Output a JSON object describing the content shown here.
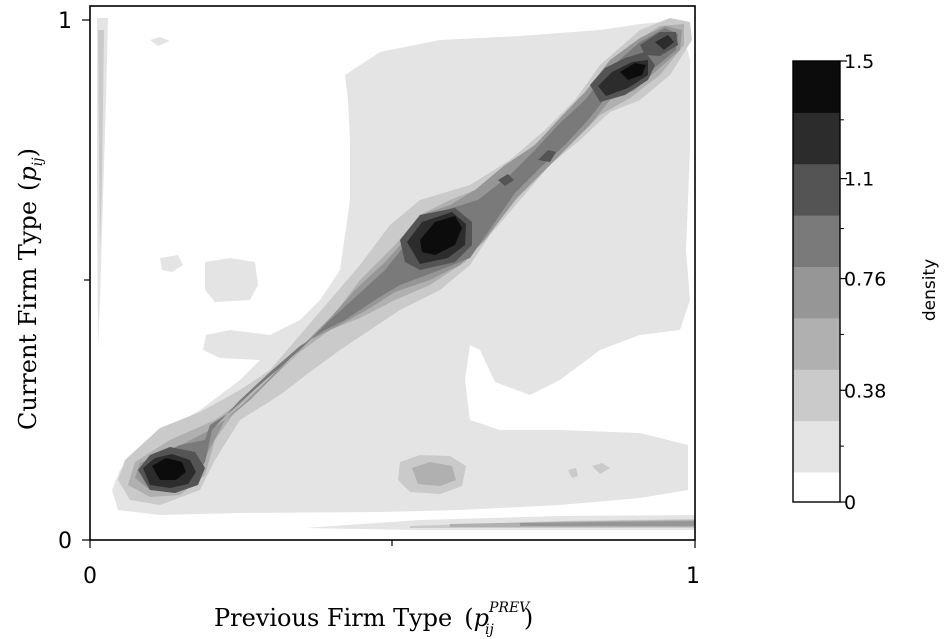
{
  "chart_data": {
    "type": "heatmap",
    "subtype": "filled-contour",
    "title": "",
    "xlabel": "Previous Firm Type",
    "xlabel_math": {
      "base": "p",
      "sup": "PREV",
      "sub": "ij"
    },
    "ylabel": "Current Firm Type",
    "ylabel_math": {
      "base": "p",
      "sub": "ij"
    },
    "xlim": [
      0,
      1
    ],
    "ylim": [
      0,
      1
    ],
    "x_ticks": [
      "0",
      "1"
    ],
    "y_ticks": [
      "0",
      "1"
    ],
    "colorbar": {
      "title": "density",
      "range": [
        0,
        1.5
      ],
      "tick_labels": [
        "0",
        "0.38",
        "0.76",
        "1.1",
        "1.5"
      ],
      "tick_values": [
        0,
        0.38,
        0.76,
        1.1,
        1.5
      ],
      "levels": 8,
      "colors": [
        "#ffffff",
        "#e4e4e4",
        "#cacaca",
        "#b0b0b0",
        "#969696",
        "#7a7a7a",
        "#545454",
        "#2c2c2c",
        "#0c0c0c"
      ]
    },
    "peaks": [
      {
        "x": 0.14,
        "y": 0.14,
        "density": 1.5
      },
      {
        "x": 0.56,
        "y": 0.59,
        "density": 1.5
      },
      {
        "x": 0.9,
        "y": 0.9,
        "density": 1.5
      },
      {
        "x": 0.57,
        "y": 0.13,
        "density": 0.6
      }
    ],
    "ridge": {
      "description": "density concentrated along the diagonal y = x",
      "from": [
        0.05,
        0.07
      ],
      "to": [
        0.99,
        0.99
      ]
    },
    "grid": false
  }
}
